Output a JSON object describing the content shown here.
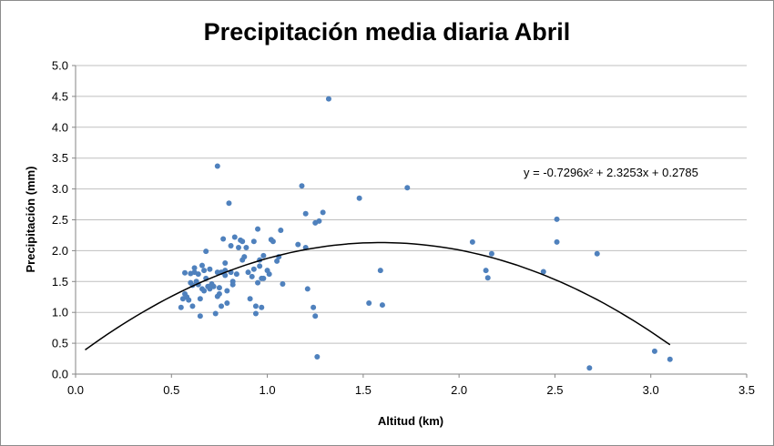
{
  "chart_data": {
    "type": "scatter",
    "title": "Precipitación media diaria Abril",
    "xlabel": "Altitud (km)",
    "ylabel": "Precipitación (mm)",
    "xlim": [
      0,
      3.5
    ],
    "ylim": [
      0,
      5
    ],
    "xticks": [
      "0.0",
      "0.5",
      "1.0",
      "1.5",
      "2.0",
      "2.5",
      "3.0",
      "3.5"
    ],
    "yticks": [
      "0.0",
      "0.5",
      "1.0",
      "1.5",
      "2.0",
      "2.5",
      "3.0",
      "3.5",
      "4.0",
      "4.5",
      "5.0"
    ],
    "grid": "horizontal",
    "legend": "none",
    "marker_color": "#4f81bd",
    "trendline": {
      "type": "polynomial",
      "equation": "y = -0.7296x² + 2.3253x + 0.2785",
      "coefficients": [
        -0.7296,
        2.3253,
        0.2785
      ],
      "x_range": [
        0.05,
        3.1
      ],
      "color": "#000000"
    },
    "points": [
      [
        0.55,
        1.08
      ],
      [
        0.56,
        1.22
      ],
      [
        0.57,
        1.3
      ],
      [
        0.57,
        1.64
      ],
      [
        0.58,
        1.25
      ],
      [
        0.59,
        1.2
      ],
      [
        0.6,
        1.48
      ],
      [
        0.6,
        1.63
      ],
      [
        0.61,
        1.1
      ],
      [
        0.61,
        1.44
      ],
      [
        0.62,
        1.65
      ],
      [
        0.62,
        1.72
      ],
      [
        0.63,
        1.5
      ],
      [
        0.64,
        1.45
      ],
      [
        0.64,
        1.62
      ],
      [
        0.65,
        0.94
      ],
      [
        0.65,
        1.22
      ],
      [
        0.66,
        1.76
      ],
      [
        0.66,
        1.38
      ],
      [
        0.67,
        1.35
      ],
      [
        0.67,
        1.68
      ],
      [
        0.68,
        1.55
      ],
      [
        0.68,
        1.99
      ],
      [
        0.69,
        1.42
      ],
      [
        0.7,
        1.7
      ],
      [
        0.7,
        1.38
      ],
      [
        0.71,
        1.46
      ],
      [
        0.72,
        1.42
      ],
      [
        0.73,
        0.98
      ],
      [
        0.74,
        3.37
      ],
      [
        0.74,
        1.65
      ],
      [
        0.74,
        1.26
      ],
      [
        0.75,
        1.4
      ],
      [
        0.75,
        1.3
      ],
      [
        0.76,
        1.1
      ],
      [
        0.76,
        1.65
      ],
      [
        0.77,
        2.19
      ],
      [
        0.78,
        1.68
      ],
      [
        0.78,
        1.8
      ],
      [
        0.78,
        1.6
      ],
      [
        0.79,
        1.15
      ],
      [
        0.79,
        1.35
      ],
      [
        0.8,
        2.77
      ],
      [
        0.81,
        2.08
      ],
      [
        0.81,
        1.65
      ],
      [
        0.82,
        1.5
      ],
      [
        0.82,
        1.45
      ],
      [
        0.83,
        2.22
      ],
      [
        0.84,
        1.62
      ],
      [
        0.85,
        2.05
      ],
      [
        0.86,
        2.17
      ],
      [
        0.87,
        2.15
      ],
      [
        0.87,
        1.85
      ],
      [
        0.88,
        1.9
      ],
      [
        0.89,
        2.05
      ],
      [
        0.9,
        1.65
      ],
      [
        0.91,
        1.22
      ],
      [
        0.92,
        1.58
      ],
      [
        0.93,
        2.15
      ],
      [
        0.93,
        1.7
      ],
      [
        0.94,
        0.98
      ],
      [
        0.94,
        1.1
      ],
      [
        0.95,
        2.35
      ],
      [
        0.95,
        1.48
      ],
      [
        0.96,
        1.85
      ],
      [
        0.96,
        1.75
      ],
      [
        0.97,
        1.08
      ],
      [
        0.97,
        1.55
      ],
      [
        0.98,
        1.55
      ],
      [
        0.98,
        1.92
      ],
      [
        1.0,
        1.68
      ],
      [
        1.01,
        1.62
      ],
      [
        1.02,
        2.18
      ],
      [
        1.03,
        2.15
      ],
      [
        1.05,
        1.83
      ],
      [
        1.06,
        1.9
      ],
      [
        1.07,
        2.33
      ],
      [
        1.08,
        1.46
      ],
      [
        1.16,
        2.1
      ],
      [
        1.18,
        3.05
      ],
      [
        1.2,
        2.6
      ],
      [
        1.2,
        2.05
      ],
      [
        1.21,
        1.38
      ],
      [
        1.24,
        1.08
      ],
      [
        1.25,
        0.94
      ],
      [
        1.25,
        2.45
      ],
      [
        1.26,
        0.28
      ],
      [
        1.27,
        2.48
      ],
      [
        1.29,
        2.62
      ],
      [
        1.32,
        4.46
      ],
      [
        1.48,
        2.85
      ],
      [
        1.53,
        1.15
      ],
      [
        1.59,
        1.68
      ],
      [
        1.6,
        1.12
      ],
      [
        1.73,
        3.02
      ],
      [
        2.07,
        2.14
      ],
      [
        2.14,
        1.68
      ],
      [
        2.15,
        1.56
      ],
      [
        2.17,
        1.95
      ],
      [
        2.44,
        1.66
      ],
      [
        2.51,
        2.51
      ],
      [
        2.51,
        2.14
      ],
      [
        2.68,
        0.1
      ],
      [
        2.72,
        1.95
      ],
      [
        3.02,
        0.37
      ],
      [
        3.1,
        0.24
      ]
    ]
  }
}
